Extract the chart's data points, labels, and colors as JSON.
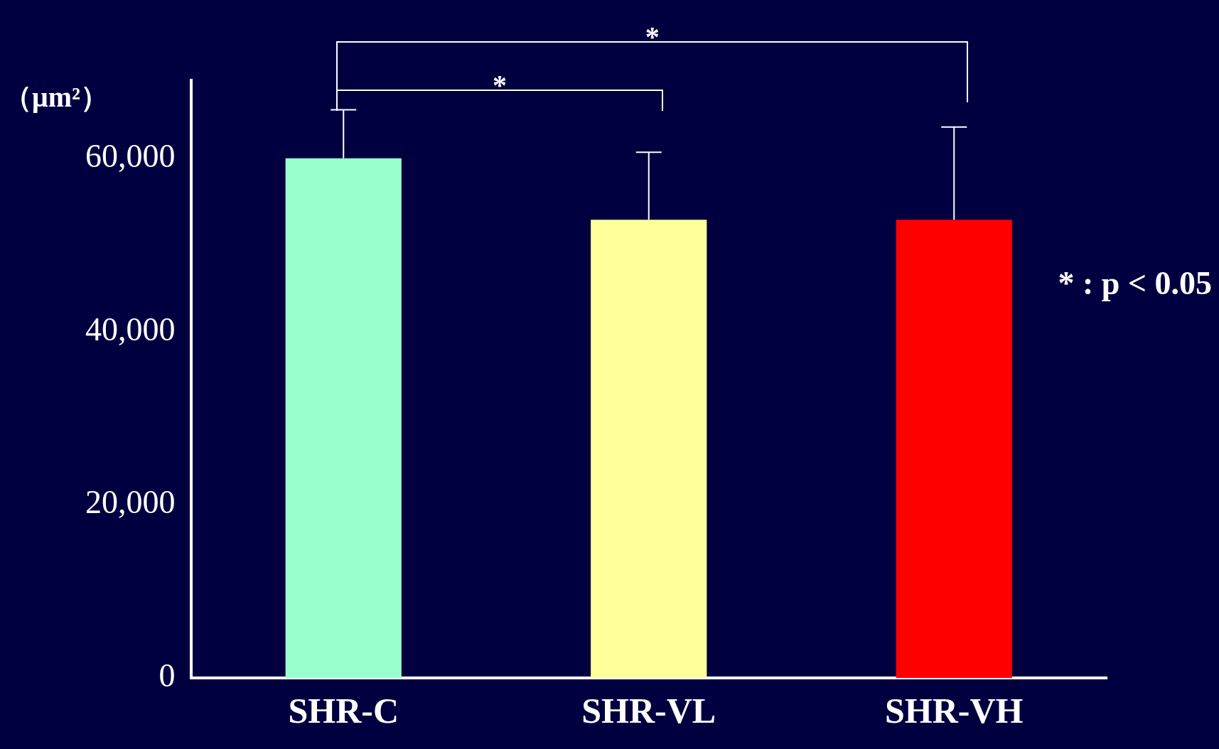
{
  "chart_data": {
    "type": "bar",
    "ylabel": "（μm²）",
    "categories": [
      "SHR-C",
      "SHR-VL",
      "SHR-VH"
    ],
    "values": [
      60000,
      52900,
      52900
    ],
    "colors": [
      "#99ffcc",
      "#ffff99",
      "#ff0000"
    ],
    "errors": [
      [
        60000,
        65600
      ],
      [
        52900,
        60700
      ],
      [
        52900,
        63600
      ]
    ],
    "ylim": [
      0,
      69000
    ],
    "yticks": [
      0,
      {
        "value": 20000,
        "label": "20,000"
      },
      {
        "value": 40000,
        "label": "40,000"
      },
      {
        "value": 60000,
        "label": "60,000"
      }
    ],
    "grid": false,
    "legend": false,
    "annotations": [
      "*",
      "*",
      "* : p < 0.05"
    ]
  }
}
